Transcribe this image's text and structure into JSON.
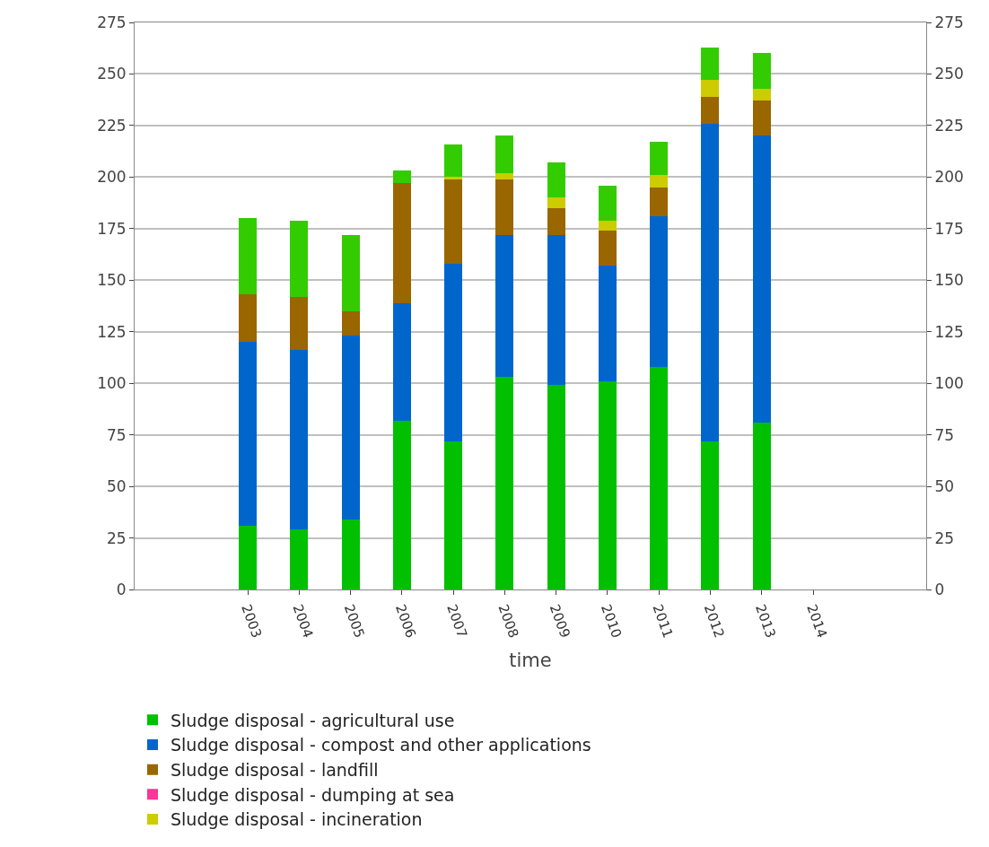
{
  "chart_data": {
    "type": "bar",
    "stacked": true,
    "xlabel": "time",
    "categories": [
      "2003",
      "2004",
      "2005",
      "2006",
      "2007",
      "2008",
      "2009",
      "2010",
      "2011",
      "2012",
      "2013",
      "2014"
    ],
    "series": [
      {
        "name": "Sludge disposal - agricultural use",
        "color": "#00c000",
        "values": [
          31,
          29,
          34,
          82,
          72,
          103,
          99,
          101,
          108,
          72,
          81,
          null
        ]
      },
      {
        "name": "Sludge disposal - compost and other applications",
        "color": "#0066cc",
        "values": [
          89,
          87,
          89,
          57,
          86,
          69,
          73,
          56,
          73,
          154,
          139,
          null
        ]
      },
      {
        "name": "Sludge disposal - landfill",
        "color": "#996600",
        "values": [
          23,
          26,
          12,
          58,
          41,
          27,
          13,
          17,
          14,
          13,
          17,
          null
        ]
      },
      {
        "name": "Sludge disposal - dumping at sea",
        "color": "#ff3399",
        "values": [
          null,
          null,
          null,
          null,
          null,
          null,
          null,
          null,
          null,
          null,
          null,
          null
        ]
      },
      {
        "name": "Sludge disposal - incineration",
        "color": "#cccc00",
        "values": [
          null,
          null,
          null,
          null,
          1,
          3,
          5,
          5,
          6,
          8,
          6,
          null
        ]
      },
      {
        "color": "#33cc00",
        "values": [
          37,
          37,
          37,
          6,
          16,
          18,
          17,
          17,
          16,
          16,
          17,
          null
        ]
      }
    ],
    "ylim": [
      0,
      275
    ],
    "yticks": [
      0,
      25,
      50,
      75,
      100,
      125,
      150,
      175,
      200,
      225,
      250,
      275
    ],
    "y2lim": [
      0,
      275
    ],
    "y2ticks": [
      0,
      25,
      50,
      75,
      100,
      125,
      150,
      175,
      200,
      225,
      250,
      275
    ],
    "grid": "y",
    "legend": "bottom"
  }
}
